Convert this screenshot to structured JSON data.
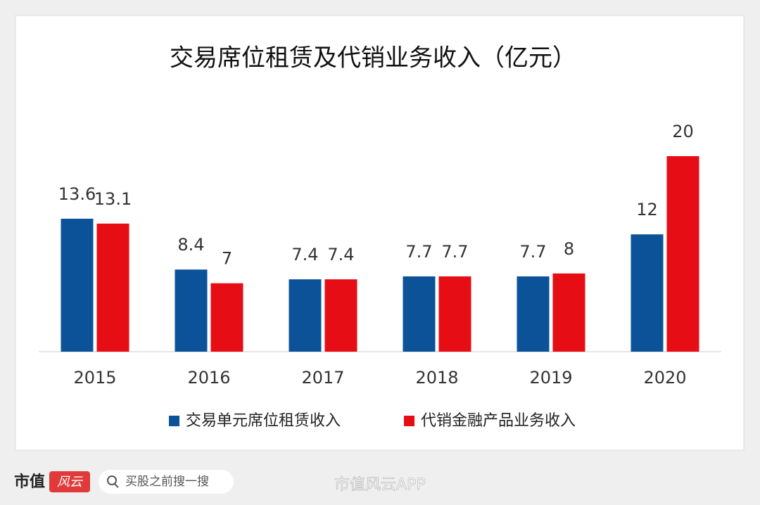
{
  "chart_data": {
    "type": "bar",
    "title": "交易席位租赁及代销业务收入（亿元）",
    "categories": [
      "2015",
      "2016",
      "2017",
      "2018",
      "2019",
      "2020"
    ],
    "series": [
      {
        "name": "交易单元席位租赁收入",
        "color": "#0b5299",
        "values": [
          13.6,
          8.4,
          7.4,
          7.7,
          7.7,
          12
        ]
      },
      {
        "name": "代销金融产品业务收入",
        "color": "#e60d15",
        "values": [
          13.1,
          7,
          7.4,
          7.7,
          8,
          20
        ]
      }
    ],
    "legend": "bottom"
  },
  "footer": {
    "logo": "市值",
    "logo_script": "风云",
    "search": "买股之前搜一搜",
    "watermark": "市值风云APP"
  }
}
